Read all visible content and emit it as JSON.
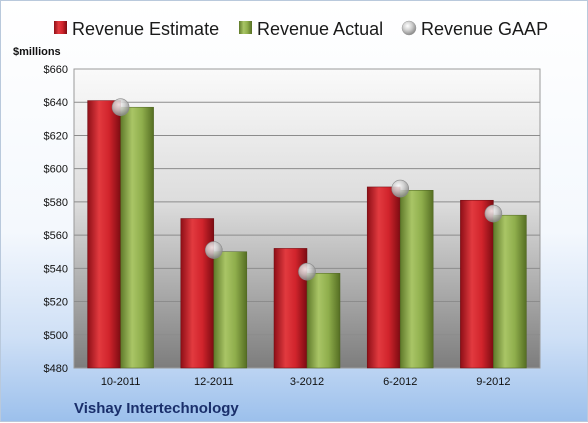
{
  "chart_data": {
    "type": "bar",
    "title": "",
    "xlabel": "",
    "ylabel": "$millions",
    "ylim": [
      480,
      660
    ],
    "yticks": [
      "$480",
      "$500",
      "$520",
      "$540",
      "$560",
      "$580",
      "$600",
      "$620",
      "$640",
      "$660"
    ],
    "ytick_values": [
      480,
      500,
      520,
      540,
      560,
      580,
      600,
      620,
      640,
      660
    ],
    "categories": [
      "10-2011",
      "12-2011",
      "3-2012",
      "6-2012",
      "9-2012"
    ],
    "series": [
      {
        "name": "Revenue Estimate",
        "kind": "bar",
        "color": "#c8202a",
        "values": [
          641,
          570,
          552,
          589,
          581
        ]
      },
      {
        "name": "Revenue Actual",
        "kind": "bar",
        "color": "#8fae4c",
        "values": [
          637,
          550,
          537,
          587,
          572
        ]
      },
      {
        "name": "Revenue GAAP",
        "kind": "marker",
        "color": "#c9c9c9",
        "values": [
          637,
          551,
          538,
          588,
          573
        ]
      }
    ],
    "grid": true,
    "legend_position": "top"
  },
  "footer": {
    "company": "Vishay Intertechnology"
  }
}
